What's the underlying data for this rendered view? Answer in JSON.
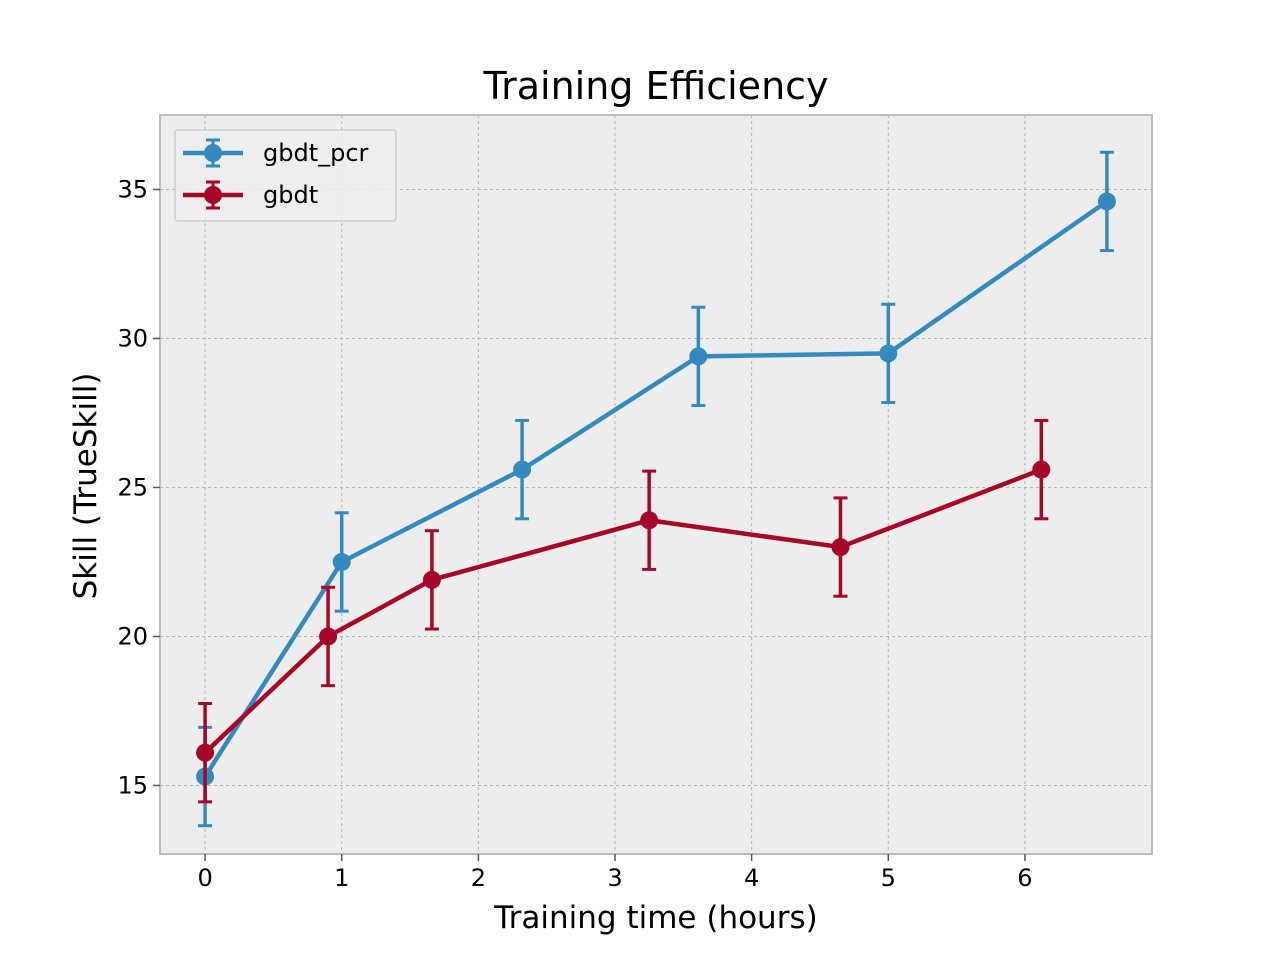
{
  "chart_data": {
    "type": "line",
    "title": "Training Efficiency",
    "xlabel": "Training time (hours)",
    "ylabel": "Skill (TrueSkill)",
    "xlim": [
      -0.33,
      6.93
    ],
    "ylim": [
      12.7,
      37.5
    ],
    "xticks": [
      0,
      1,
      2,
      3,
      4,
      5,
      6
    ],
    "yticks": [
      15,
      20,
      25,
      30,
      35
    ],
    "grid": true,
    "legend_position": "upper-left",
    "series": [
      {
        "name": "gbdt_pcr",
        "color": "#348abd",
        "x": [
          0.0,
          1.0,
          2.32,
          3.61,
          5.0,
          6.6
        ],
        "y": [
          15.3,
          22.5,
          25.6,
          29.4,
          29.5,
          34.6
        ],
        "err": [
          1.65,
          1.65,
          1.65,
          1.65,
          1.65,
          1.65
        ]
      },
      {
        "name": "gbdt",
        "color": "#a60628",
        "x": [
          0.0,
          0.9,
          1.66,
          3.25,
          4.65,
          6.12
        ],
        "y": [
          16.1,
          20.0,
          21.9,
          23.9,
          23.0,
          25.6
        ],
        "err": [
          1.65,
          1.65,
          1.65,
          1.65,
          1.65,
          1.65
        ]
      }
    ]
  }
}
